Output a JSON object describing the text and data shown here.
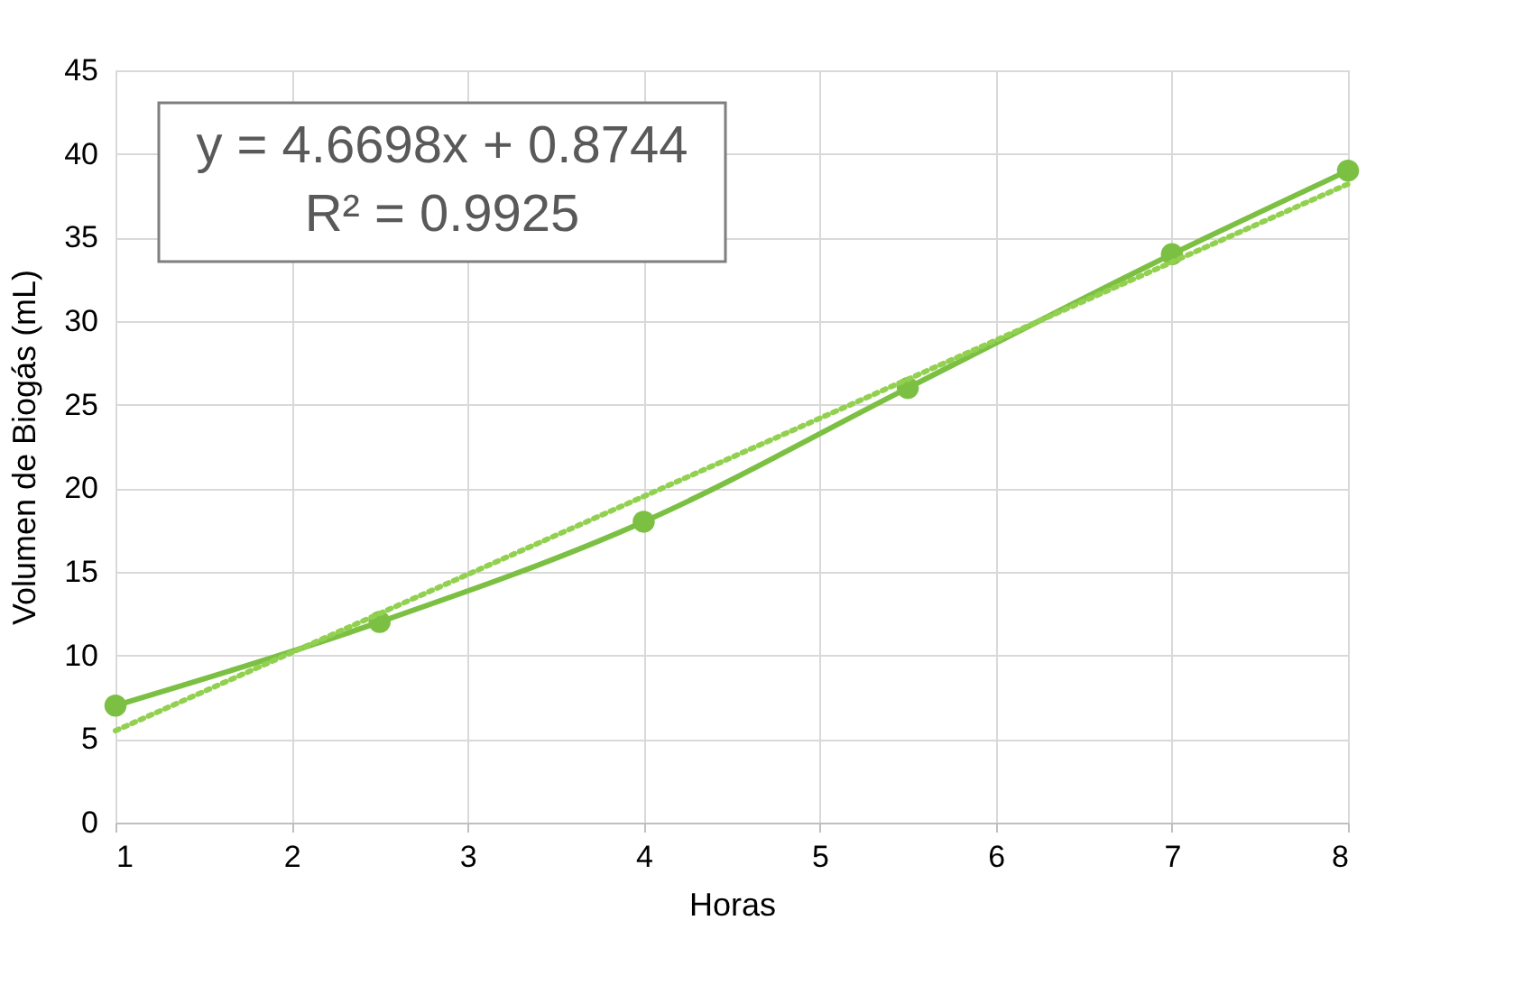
{
  "chart_data": {
    "type": "line",
    "xlabel": "Horas",
    "ylabel": "Volumen de Biogás (mL)",
    "series": [
      {
        "color": "#7cc043",
        "marker": "circle",
        "line_style": "solid",
        "x": [
          1,
          2.5,
          4,
          5.5,
          7,
          8
        ],
        "values": [
          7,
          12,
          18,
          26,
          34,
          39
        ]
      },
      {
        "type": "line",
        "color": "#92d050",
        "marker": "none",
        "line_style": "dotted",
        "x": [
          1,
          8
        ],
        "values": [
          5.5,
          38.2
        ]
      }
    ],
    "annotations": [
      "y = 4.6698x + 0.8744",
      "R² = 0.9925"
    ],
    "xlim": [
      1,
      8
    ],
    "xticks": [
      1,
      2,
      3,
      4,
      5,
      6,
      7,
      8
    ],
    "ylim": [
      0,
      45
    ],
    "yticks": [
      0,
      5,
      10,
      15,
      20,
      25,
      30,
      35,
      40,
      45
    ],
    "grid": true
  }
}
